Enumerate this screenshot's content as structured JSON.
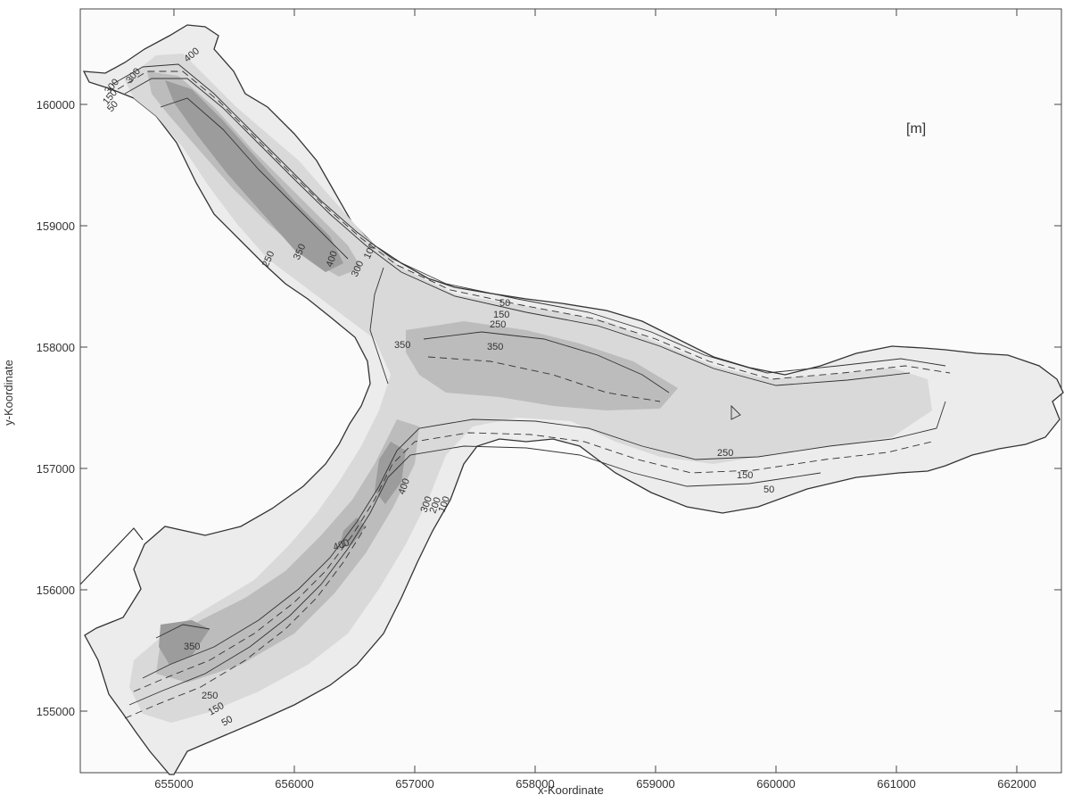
{
  "map": {
    "unit_label": "[m]",
    "x_axis_title": "x-Koordinate",
    "y_axis_title": "y-Koordinate",
    "x_ticks": [
      "655000",
      "656000",
      "657000",
      "658000",
      "659000",
      "660000",
      "661000",
      "662000"
    ],
    "y_ticks": [
      "160000",
      "159000",
      "158000",
      "157000",
      "156000",
      "155000"
    ],
    "contour_labels": {
      "c1": "350",
      "c2": "350",
      "c3": "250",
      "c4": "150",
      "c5": "50",
      "c6": "50",
      "c7": "150",
      "c8": "250",
      "c9": "400",
      "c10": "400",
      "c11": "350",
      "c12": "250",
      "c13": "150",
      "c14": "50",
      "c15": "400",
      "c16": "350",
      "c17": "300",
      "c18": "100",
      "c19": "300",
      "c20": "150",
      "c21": "50",
      "c22": "300",
      "c23": "200",
      "c24": "100",
      "c25": "400",
      "c26": "250",
      "c27": "300"
    },
    "colors": {
      "shallow": "#ededed",
      "mid": "#d8d8d8",
      "deep": "#bcbcbc",
      "deepest": "#9a9a9a",
      "line": "#333333"
    }
  }
}
